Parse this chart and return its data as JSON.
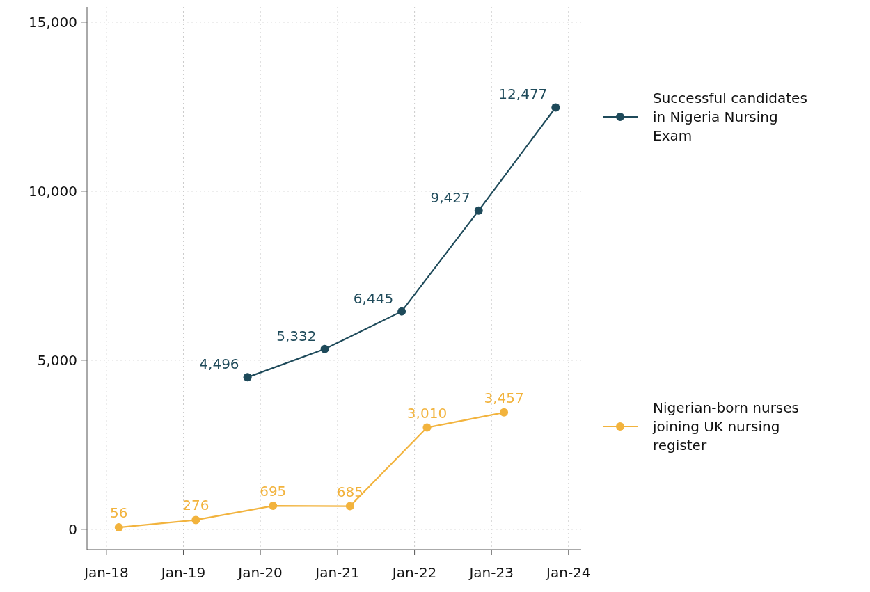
{
  "chart_data": {
    "type": "line",
    "series": [
      {
        "name": "Successful candidates in Nigeria Nursing Exam",
        "color": "#1e4a5a",
        "x": [
          "2019-11",
          "2020-11",
          "2021-11",
          "2022-11",
          "2023-11"
        ],
        "values": [
          4496,
          5332,
          6445,
          9427,
          12477
        ],
        "value_labels": [
          "4,496",
          "5,332",
          "6,445",
          "9,427",
          "12,477"
        ]
      },
      {
        "name": "Nigerian-born nurses joining UK nursing register",
        "color": "#f2b33d",
        "x": [
          "2018-03",
          "2019-03",
          "2020-03",
          "2021-03",
          "2022-03",
          "2023-03"
        ],
        "values": [
          56,
          276,
          695,
          685,
          3010,
          3457
        ],
        "value_labels": [
          "56",
          "276",
          "695",
          "685",
          "3,010",
          "3,457"
        ]
      }
    ],
    "xlim": [
      "2017-10",
      "2024-03"
    ],
    "xticks": [
      {
        "value": "2018-01",
        "label": "Jan-18"
      },
      {
        "value": "2019-01",
        "label": "Jan-19"
      },
      {
        "value": "2020-01",
        "label": "Jan-20"
      },
      {
        "value": "2021-01",
        "label": "Jan-21"
      },
      {
        "value": "2022-01",
        "label": "Jan-22"
      },
      {
        "value": "2023-01",
        "label": "Jan-23"
      },
      {
        "value": "2024-01",
        "label": "Jan-24"
      }
    ],
    "ylim": [
      -600,
      15450
    ],
    "yticks": [
      {
        "value": 0,
        "label": "0"
      },
      {
        "value": 5000,
        "label": "5,000"
      },
      {
        "value": 10000,
        "label": "10,000"
      },
      {
        "value": 15000,
        "label": "15,000"
      }
    ],
    "grid": true,
    "legend": "right",
    "marker": "circle",
    "line_style": "solid"
  }
}
